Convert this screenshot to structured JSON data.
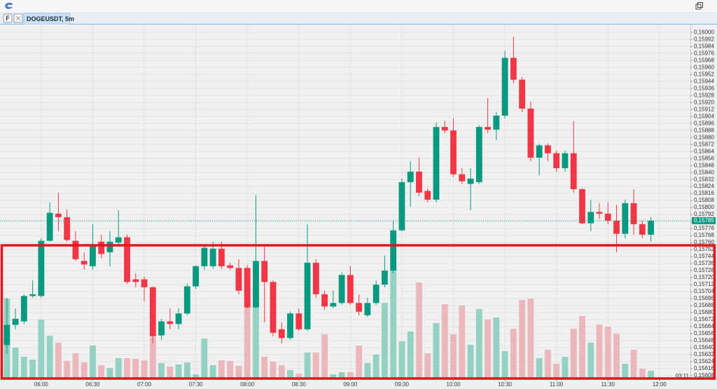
{
  "window": {
    "tab_icon": "F",
    "tab": "DOGEUSDT, 5m"
  },
  "chart_data": {
    "type": "candlestick",
    "x": [
      "05:40",
      "05:45",
      "05:50",
      "05:55",
      "06:00",
      "06:05",
      "06:10",
      "06:15",
      "06:20",
      "06:25",
      "06:30",
      "06:35",
      "06:40",
      "06:45",
      "06:50",
      "06:55",
      "07:00",
      "07:05",
      "07:10",
      "07:15",
      "07:20",
      "07:25",
      "07:30",
      "07:35",
      "07:40",
      "07:45",
      "07:50",
      "07:55",
      "08:00",
      "08:05",
      "08:10",
      "08:15",
      "08:20",
      "08:25",
      "08:30",
      "08:35",
      "08:40",
      "08:45",
      "08:50",
      "08:55",
      "09:00",
      "09:05",
      "09:10",
      "09:15",
      "09:20",
      "09:25",
      "09:30",
      "09:35",
      "09:40",
      "09:45",
      "09:50",
      "09:55",
      "10:00",
      "10:05",
      "10:10",
      "10:15",
      "10:20",
      "10:25",
      "10:30",
      "10:35",
      "10:40",
      "10:45",
      "10:50",
      "10:55",
      "11:00",
      "11:05",
      "11:10",
      "11:15",
      "11:20",
      "11:25",
      "11:30",
      "11:35",
      "11:40",
      "11:45",
      "11:50",
      "11:55"
    ],
    "open": [
      0.15643,
      0.15666,
      0.1567,
      0.15699,
      0.15699,
      0.15762,
      0.15793,
      0.15789,
      0.15762,
      0.15739,
      0.15733,
      0.15761,
      0.15749,
      0.1576,
      0.15766,
      0.15718,
      0.15718,
      0.15709,
      0.15654,
      0.1567,
      0.15667,
      0.15679,
      0.1571,
      0.15733,
      0.15733,
      0.15753,
      0.15734,
      0.15731,
      0.15731,
      0.15686,
      0.15739,
      0.15715,
      0.15661,
      0.15651,
      0.15679,
      0.15661,
      0.15737,
      0.15701,
      0.15687,
      0.15691,
      0.15723,
      0.15691,
      0.15677,
      0.15691,
      0.15712,
      0.15728,
      0.15774,
      0.15829,
      0.15841,
      0.15819,
      0.15809,
      0.15892,
      0.15888,
      0.15838,
      0.15827,
      0.15829,
      0.15892,
      0.15889,
      0.15905,
      0.15971,
      0.15946,
      0.15913,
      0.15857,
      0.15871,
      0.15862,
      0.15845,
      0.15862,
      0.15821,
      0.15782,
      0.15795,
      0.15793,
      0.15785,
      0.1577,
      0.15805,
      0.15781,
      0.15769
    ],
    "high": [
      0.15697,
      0.15685,
      0.15701,
      0.15717,
      0.15765,
      0.15806,
      0.15817,
      0.15798,
      0.15773,
      0.15749,
      0.15781,
      0.15769,
      0.15773,
      0.15797,
      0.15769,
      0.15725,
      0.15721,
      0.1571,
      0.15673,
      0.15685,
      0.15685,
      0.15713,
      0.15734,
      0.15757,
      0.15761,
      0.15761,
      0.15737,
      0.15741,
      0.15734,
      0.15814,
      0.15757,
      0.15717,
      0.15669,
      0.15681,
      0.15685,
      0.15781,
      0.15741,
      0.15705,
      0.15705,
      0.15726,
      0.15733,
      0.15701,
      0.15697,
      0.15717,
      0.15745,
      0.15785,
      0.15833,
      0.15853,
      0.15857,
      0.15822,
      0.15897,
      0.15899,
      0.15902,
      0.15845,
      0.15845,
      0.15894,
      0.15925,
      0.15909,
      0.15979,
      0.15995,
      0.15949,
      0.15921,
      0.15873,
      0.15873,
      0.15865,
      0.15865,
      0.15899,
      0.15822,
      0.15809,
      0.15805,
      0.15806,
      0.15803,
      0.15809,
      0.15821,
      0.15785,
      0.15789
    ],
    "low": [
      0.15633,
      0.15661,
      0.15667,
      0.15697,
      0.15697,
      0.15761,
      0.15773,
      0.15761,
      0.15739,
      0.15729,
      0.15729,
      0.15742,
      0.15733,
      0.15757,
      0.15713,
      0.15709,
      0.15693,
      0.15645,
      0.15649,
      0.15661,
      0.15661,
      0.15677,
      0.15707,
      0.15729,
      0.1573,
      0.1573,
      0.15729,
      0.15701,
      0.15685,
      0.15685,
      0.15669,
      0.15653,
      0.15645,
      0.15649,
      0.15659,
      0.15659,
      0.15697,
      0.15683,
      0.15685,
      0.15689,
      0.15689,
      0.15677,
      0.15675,
      0.15689,
      0.15709,
      0.15725,
      0.15773,
      0.15801,
      0.15813,
      0.15806,
      0.15806,
      0.15885,
      0.15835,
      0.15827,
      0.15797,
      0.15827,
      0.15885,
      0.15877,
      0.15902,
      0.15942,
      0.15909,
      0.15853,
      0.15837,
      0.15853,
      0.15841,
      0.15841,
      0.15817,
      0.15781,
      0.15773,
      0.15787,
      0.15781,
      0.15749,
      0.15765,
      0.15769,
      0.15765,
      0.15761
    ],
    "close": [
      0.15666,
      0.15673,
      0.15699,
      0.15701,
      0.15762,
      0.15794,
      0.15789,
      0.15763,
      0.15741,
      0.15735,
      0.15758,
      0.15747,
      0.15761,
      0.15766,
      0.15715,
      0.15715,
      0.15709,
      0.15653,
      0.1567,
      0.15667,
      0.15679,
      0.1571,
      0.15733,
      0.15754,
      0.15753,
      0.15733,
      0.15731,
      0.15705,
      0.15686,
      0.15739,
      0.15715,
      0.15657,
      0.15651,
      0.15679,
      0.15661,
      0.15737,
      0.15701,
      0.15687,
      0.15691,
      0.15723,
      0.15691,
      0.15681,
      0.15691,
      0.15712,
      0.15728,
      0.15774,
      0.15829,
      0.15841,
      0.15817,
      0.15809,
      0.15892,
      0.15888,
      0.15838,
      0.1583,
      0.15833,
      0.15892,
      0.15889,
      0.15905,
      0.15971,
      0.15946,
      0.15913,
      0.15857,
      0.15871,
      0.15862,
      0.15845,
      0.15862,
      0.15821,
      0.15782,
      0.15795,
      0.15793,
      0.15785,
      0.1577,
      0.15805,
      0.15781,
      0.15769,
      0.15785
    ],
    "volume": [
      115,
      45,
      32,
      28,
      85,
      62,
      52,
      26,
      37,
      24,
      48,
      20,
      16,
      30,
      30,
      29,
      27,
      60,
      23,
      18,
      21,
      24,
      7,
      58,
      20,
      27,
      26,
      19,
      130,
      140,
      32,
      25,
      20,
      13,
      8,
      38,
      38,
      64,
      7,
      10,
      10,
      48,
      23,
      35,
      109,
      160,
      54,
      68,
      138,
      37,
      80,
      107,
      64,
      105,
      49,
      100,
      85,
      88,
      40,
      72,
      113,
      115,
      30,
      42,
      22,
      32,
      72,
      90,
      52,
      78,
      75,
      65,
      22,
      42,
      15,
      12
    ],
    "volume_lim": [
      0,
      506
    ],
    "xlim": [
      "05:36",
      "12:18"
    ],
    "xticks": [
      "06:00",
      "06:30",
      "07:00",
      "07:30",
      "08:00",
      "08:30",
      "09:00",
      "09:30",
      "10:00",
      "10:30",
      "11:00",
      "11:30",
      "12:00"
    ],
    "ylim": [
      0.15604,
      0.16009
    ],
    "yticks": [
      {
        "value": 0.16,
        "label": "0,16000"
      },
      {
        "value": 0.15992,
        "label": "0,15992"
      },
      {
        "value": 0.15984,
        "label": "0,15984"
      },
      {
        "value": 0.15976,
        "label": "0,15976"
      },
      {
        "value": 0.15968,
        "label": "0,15968"
      },
      {
        "value": 0.1596,
        "label": "0,15960"
      },
      {
        "value": 0.15952,
        "label": "0,15952"
      },
      {
        "value": 0.15944,
        "label": "0,15944"
      },
      {
        "value": 0.15936,
        "label": "0,15936"
      },
      {
        "value": 0.15928,
        "label": "0,15928"
      },
      {
        "value": 0.1592,
        "label": "0,15920"
      },
      {
        "value": 0.15912,
        "label": "0,15912"
      },
      {
        "value": 0.15904,
        "label": "0,15904"
      },
      {
        "value": 0.15896,
        "label": "0,15896"
      },
      {
        "value": 0.15888,
        "label": "0,15888"
      },
      {
        "value": 0.1588,
        "label": "0,15880"
      },
      {
        "value": 0.15872,
        "label": "0,15872"
      },
      {
        "value": 0.15864,
        "label": "0,15864"
      },
      {
        "value": 0.15856,
        "label": "0,15856"
      },
      {
        "value": 0.15848,
        "label": "0,15848"
      },
      {
        "value": 0.1584,
        "label": "0,15840"
      },
      {
        "value": 0.15832,
        "label": "0,15832"
      },
      {
        "value": 0.15824,
        "label": "0,15824"
      },
      {
        "value": 0.15816,
        "label": "0,15816"
      },
      {
        "value": 0.15808,
        "label": "0,15808"
      },
      {
        "value": 0.158,
        "label": "0,15800"
      },
      {
        "value": 0.15792,
        "label": "0,15792"
      },
      {
        "value": 0.15784,
        "label": "0,15784"
      },
      {
        "value": 0.15776,
        "label": "0,15776"
      },
      {
        "value": 0.15768,
        "label": "0,15768"
      },
      {
        "value": 0.1576,
        "label": "0,15760"
      },
      {
        "value": 0.15752,
        "label": "0,15752"
      },
      {
        "value": 0.15744,
        "label": "0,15744"
      },
      {
        "value": 0.15736,
        "label": "0,15736"
      },
      {
        "value": 0.15728,
        "label": "0,15728"
      },
      {
        "value": 0.1572,
        "label": "0,15720"
      },
      {
        "value": 0.15712,
        "label": "0,15712"
      },
      {
        "value": 0.15704,
        "label": "0,15704"
      },
      {
        "value": 0.15696,
        "label": "0,15696"
      },
      {
        "value": 0.15688,
        "label": "0,15688"
      },
      {
        "value": 0.1568,
        "label": "0,15680"
      },
      {
        "value": 0.15672,
        "label": "0,15672"
      },
      {
        "value": 0.15664,
        "label": "0,15664"
      },
      {
        "value": 0.15656,
        "label": "0,15656"
      },
      {
        "value": 0.15648,
        "label": "0,15648"
      },
      {
        "value": 0.1564,
        "label": "0,15640"
      },
      {
        "value": 0.15632,
        "label": "0,15632"
      },
      {
        "value": 0.15624,
        "label": "0,15624"
      },
      {
        "value": 0.15616,
        "label": "0,15616"
      },
      {
        "value": 0.15608,
        "label": "0,15608"
      }
    ],
    "last_price": {
      "value": 0.15785,
      "label": "0,15785"
    },
    "countdown": "03:11",
    "grid": true,
    "up_color": "#089981",
    "down_color": "#f23645",
    "volume_up_color": "#93d2c2",
    "volume_down_color": "#ebb7ba",
    "last_price_color": "#089981"
  }
}
